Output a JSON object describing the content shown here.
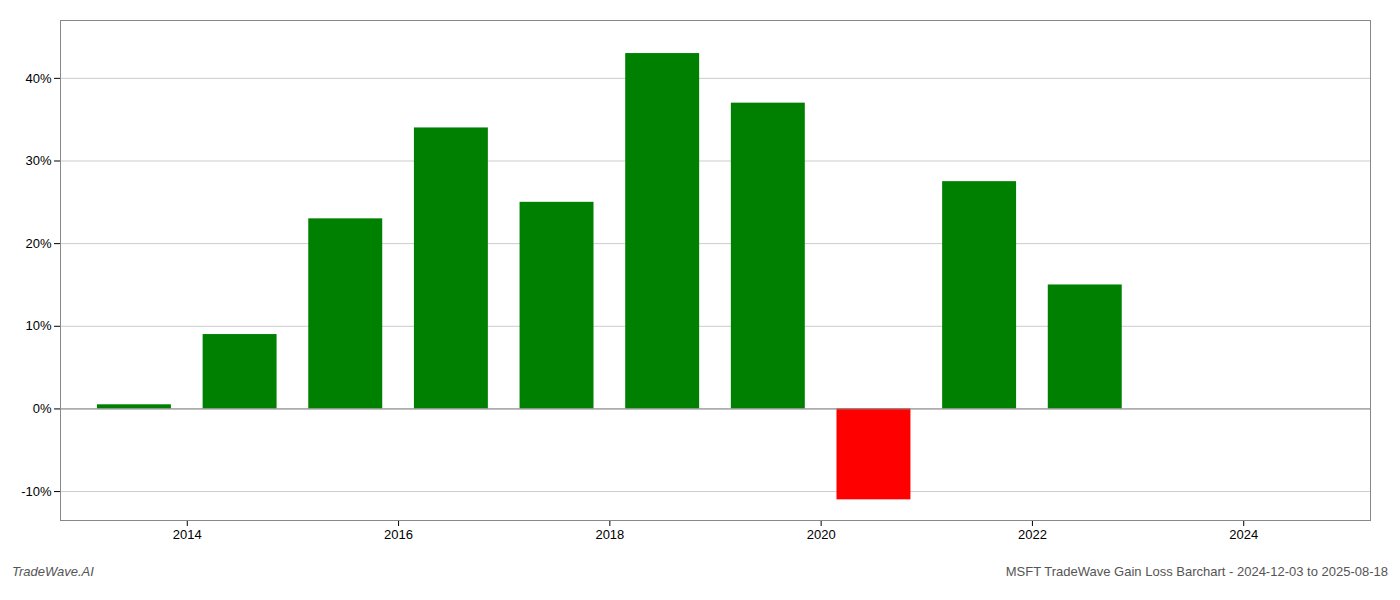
{
  "chart_data": {
    "type": "bar",
    "x": [
      2013.5,
      2014.5,
      2015.5,
      2016.5,
      2017.5,
      2018.5,
      2019.5,
      2020.5,
      2021.5,
      2022.5,
      2023.5
    ],
    "values": [
      0.5,
      9.0,
      23.0,
      34.0,
      25.0,
      43.0,
      37.0,
      -11.0,
      27.5,
      15.0,
      0.0
    ],
    "colors": [
      "#008000",
      "#008000",
      "#008000",
      "#008000",
      "#008000",
      "#008000",
      "#008000",
      "#ff0000",
      "#008000",
      "#008000",
      "#008000"
    ],
    "xlim": [
      2012.8,
      2025.2
    ],
    "xticks": [
      2014,
      2016,
      2018,
      2020,
      2022,
      2024
    ],
    "ylim": [
      -13.5,
      47
    ],
    "yticks": [
      {
        "value": -10,
        "label": "-10%"
      },
      {
        "value": 0,
        "label": "0%"
      },
      {
        "value": 10,
        "label": "10%"
      },
      {
        "value": 20,
        "label": "20%"
      },
      {
        "value": 30,
        "label": "30%"
      },
      {
        "value": 40,
        "label": "40%"
      }
    ],
    "grid": true,
    "annotations": [
      "TradeWave.AI",
      "MSFT TradeWave Gain Loss Barchart - 2024-12-03 to 2025-08-18"
    ]
  }
}
